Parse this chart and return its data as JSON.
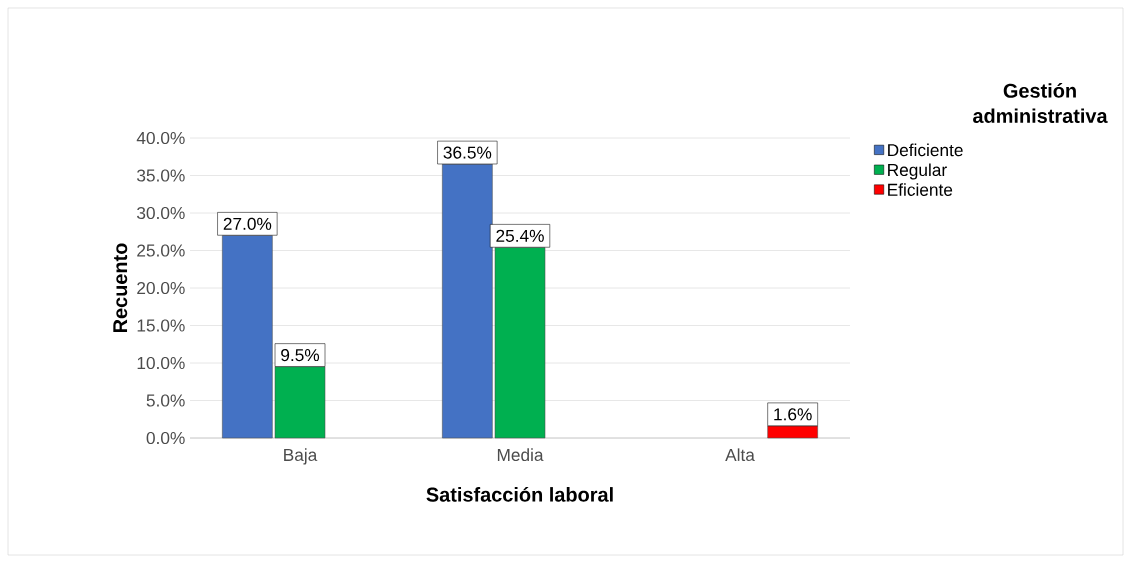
{
  "chart_data": {
    "type": "bar",
    "xlabel": "Satisfacción laboral",
    "ylabel": "Recuento",
    "legend_title": "Gestión administrativa",
    "categories": [
      "Baja",
      "Media",
      "Alta"
    ],
    "series": [
      {
        "name": "Deficiente",
        "color": "#4472c4",
        "values": [
          27.0,
          36.5,
          null
        ],
        "value_labels": [
          "27.0%",
          "36.5%",
          null
        ]
      },
      {
        "name": "Regular",
        "color": "#00b050",
        "values": [
          9.5,
          25.4,
          null
        ],
        "value_labels": [
          "9.5%",
          "25.4%",
          null
        ]
      },
      {
        "name": "Eficiente",
        "color": "#ff0000",
        "values": [
          null,
          null,
          1.6
        ],
        "value_labels": [
          null,
          null,
          "1.6%"
        ]
      }
    ],
    "ylim": [
      0,
      40
    ],
    "yticks": [
      {
        "value": 0,
        "label": "0.0%"
      },
      {
        "value": 5,
        "label": "5.0%"
      },
      {
        "value": 10,
        "label": "10.0%"
      },
      {
        "value": 15,
        "label": "15.0%"
      },
      {
        "value": 20,
        "label": "20.0%"
      },
      {
        "value": 25,
        "label": "25.0%"
      },
      {
        "value": 30,
        "label": "30.0%"
      },
      {
        "value": 35,
        "label": "35.0%"
      },
      {
        "value": 40,
        "label": "40.0%"
      }
    ],
    "grid": "y",
    "legend": "right"
  }
}
